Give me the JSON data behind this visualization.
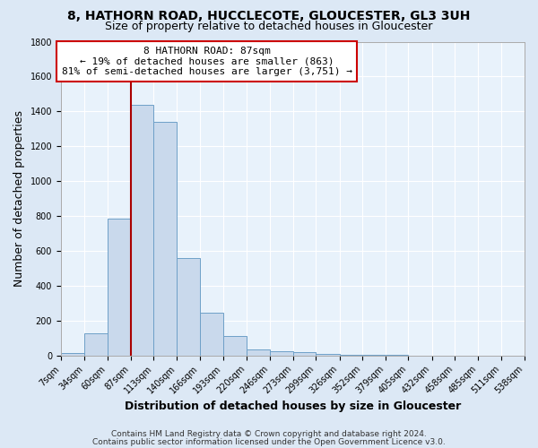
{
  "title_line1": "8, HATHORN ROAD, HUCCLECOTE, GLOUCESTER, GL3 3UH",
  "title_line2": "Size of property relative to detached houses in Gloucester",
  "xlabel": "Distribution of detached houses by size in Gloucester",
  "ylabel": "Number of detached properties",
  "bin_edges": [
    7,
    34,
    60,
    87,
    113,
    140,
    166,
    193,
    220,
    246,
    273,
    299,
    326,
    352,
    379,
    405,
    432,
    458,
    485,
    511,
    538
  ],
  "bar_heights": [
    15,
    130,
    785,
    1440,
    1340,
    560,
    245,
    110,
    35,
    25,
    20,
    10,
    5,
    3,
    2,
    1,
    1,
    1,
    0,
    0
  ],
  "bar_color": "#c9d9ec",
  "bar_edge_color": "#6ea0c8",
  "vline_x": 87,
  "vline_color": "#aa0000",
  "annotation_line1": "8 HATHORN ROAD: 87sqm",
  "annotation_line2": "← 19% of detached houses are smaller (863)",
  "annotation_line3": "81% of semi-detached houses are larger (3,751) →",
  "annotation_box_color": "#ffffff",
  "annotation_box_edge": "#cc0000",
  "ylim": [
    0,
    1800
  ],
  "yticks": [
    0,
    200,
    400,
    600,
    800,
    1000,
    1200,
    1400,
    1600,
    1800
  ],
  "footer_line1": "Contains HM Land Registry data © Crown copyright and database right 2024.",
  "footer_line2": "Contains public sector information licensed under the Open Government Licence v3.0.",
  "bg_color": "#dce8f5",
  "plot_bg_color": "#e8f2fb",
  "grid_color": "#ffffff",
  "title_fontsize": 10,
  "subtitle_fontsize": 9,
  "axis_label_fontsize": 9,
  "tick_fontsize": 7,
  "annotation_fontsize": 8,
  "footer_fontsize": 6.5
}
